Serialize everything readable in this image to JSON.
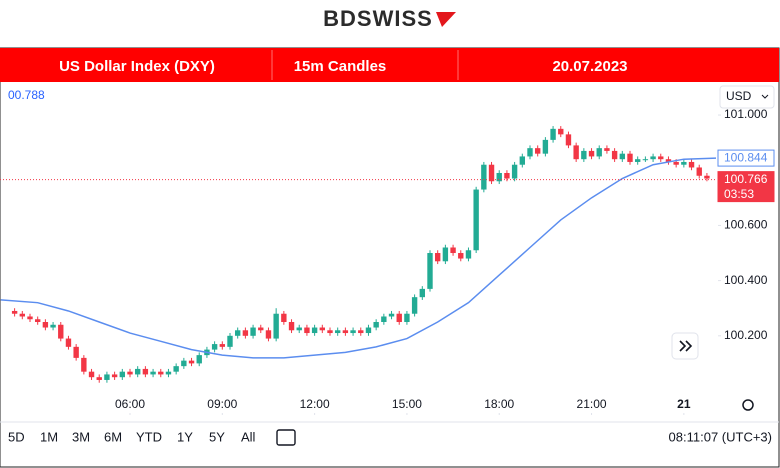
{
  "header": {
    "logo": "BDSWISS",
    "instrument": "US Dollar Index (DXY)",
    "timeframe": "15m Candles",
    "date": "20.07.2023"
  },
  "toolbar": {
    "currency": "USD",
    "ranges": [
      "5D",
      "1M",
      "3M",
      "6M",
      "YTD",
      "1Y",
      "5Y",
      "All"
    ],
    "clock": "08:11:07 (UTC+3)"
  },
  "chart_data": {
    "type": "candlestick",
    "legend_value": "00.788",
    "up_color": "#22ab94",
    "down_color": "#f23645",
    "xlim": [
      1.775,
      25.11
    ],
    "ylim": [
      99.913,
      101.098
    ],
    "xticks": [
      {
        "value": 6,
        "label": "06:00"
      },
      {
        "value": 9,
        "label": "09:00"
      },
      {
        "value": 12,
        "label": "12:00"
      },
      {
        "value": 15,
        "label": "15:00"
      },
      {
        "value": 18,
        "label": "18:00"
      },
      {
        "value": 21,
        "label": "21:00"
      },
      {
        "value": 24,
        "label": "21"
      }
    ],
    "yticks": [
      {
        "value": 100.2,
        "label": "100.200"
      },
      {
        "value": 100.4,
        "label": "100.400"
      },
      {
        "value": 100.6,
        "label": "100.600"
      },
      {
        "value": 101,
        "label": "101.000"
      }
    ],
    "x": [
      2.25,
      2.5,
      2.75,
      3,
      3.25,
      3.5,
      3.75,
      4,
      4.25,
      4.5,
      4.75,
      5,
      5.25,
      5.5,
      5.75,
      6,
      6.25,
      6.5,
      6.75,
      7,
      7.25,
      7.5,
      7.75,
      8,
      8.25,
      8.5,
      8.75,
      9,
      9.25,
      9.5,
      9.75,
      10,
      10.25,
      10.5,
      10.75,
      11,
      11.25,
      11.5,
      11.75,
      12,
      12.25,
      12.5,
      12.75,
      13,
      13.25,
      13.5,
      13.75,
      14,
      14.25,
      14.5,
      14.75,
      15,
      15.25,
      15.5,
      15.75,
      16,
      16.25,
      16.5,
      16.75,
      17,
      17.25,
      17.5,
      17.75,
      18,
      18.25,
      18.5,
      18.75,
      19,
      19.25,
      19.5,
      19.75,
      20,
      20.25,
      20.5,
      20.75,
      21,
      21.25,
      21.5,
      21.75,
      22,
      22.25,
      22.5,
      22.75,
      23,
      23.25,
      23.5,
      23.75,
      24,
      24.25,
      24.5,
      24.75
    ],
    "open": [
      100.29,
      100.28,
      100.27,
      100.26,
      100.25,
      100.23,
      100.24,
      100.19,
      100.16,
      100.12,
      100.07,
      100.05,
      100.04,
      100.06,
      100.05,
      100.07,
      100.06,
      100.08,
      100.06,
      100.07,
      100.06,
      100.07,
      100.09,
      100.11,
      100.1,
      100.13,
      100.15,
      100.17,
      100.16,
      100.2,
      100.22,
      100.2,
      100.23,
      100.22,
      100.19,
      100.28,
      100.25,
      100.22,
      100.23,
      100.21,
      100.23,
      100.22,
      100.21,
      100.22,
      100.21,
      100.22,
      100.21,
      100.23,
      100.25,
      100.27,
      100.28,
      100.25,
      100.28,
      100.34,
      100.37,
      100.5,
      100.47,
      100.52,
      100.5,
      100.48,
      100.51,
      100.73,
      100.82,
      100.76,
      100.79,
      100.77,
      100.82,
      100.85,
      100.88,
      100.86,
      100.91,
      100.95,
      100.93,
      100.89,
      100.84,
      100.87,
      100.85,
      100.88,
      100.87,
      100.84,
      100.86,
      100.83,
      100.84,
      100.84,
      100.85,
      100.84,
      100.83,
      100.82,
      100.83,
      100.81,
      100.78
    ],
    "high": [
      100.3,
      100.29,
      100.28,
      100.27,
      100.26,
      100.25,
      100.25,
      100.2,
      100.17,
      100.13,
      100.08,
      100.06,
      100.07,
      100.07,
      100.08,
      100.08,
      100.09,
      100.09,
      100.08,
      100.08,
      100.08,
      100.1,
      100.12,
      100.12,
      100.14,
      100.16,
      100.18,
      100.18,
      100.21,
      100.23,
      100.23,
      100.24,
      100.24,
      100.23,
      100.3,
      100.29,
      100.26,
      100.24,
      100.24,
      100.24,
      100.24,
      100.23,
      100.23,
      100.23,
      100.23,
      100.23,
      100.24,
      100.26,
      100.28,
      100.29,
      100.29,
      100.29,
      100.35,
      100.38,
      100.51,
      100.51,
      100.53,
      100.53,
      100.51,
      100.52,
      100.74,
      100.83,
      100.83,
      100.8,
      100.8,
      100.83,
      100.86,
      100.89,
      100.89,
      100.92,
      100.96,
      100.96,
      100.94,
      100.9,
      100.88,
      100.88,
      100.89,
      100.89,
      100.88,
      100.87,
      100.87,
      100.85,
      100.85,
      100.86,
      100.86,
      100.85,
      100.84,
      100.84,
      100.84,
      100.82,
      100.79
    ],
    "low": [
      100.27,
      100.26,
      100.25,
      100.24,
      100.22,
      100.22,
      100.18,
      100.15,
      100.11,
      100.06,
      100.04,
      100.03,
      100.03,
      100.04,
      100.04,
      100.05,
      100.05,
      100.05,
      100.05,
      100.05,
      100.05,
      100.06,
      100.08,
      100.09,
      100.09,
      100.12,
      100.14,
      100.15,
      100.15,
      100.19,
      100.19,
      100.19,
      100.21,
      100.18,
      100.18,
      100.24,
      100.21,
      100.21,
      100.2,
      100.2,
      100.21,
      100.2,
      100.2,
      100.2,
      100.2,
      100.2,
      100.2,
      100.22,
      100.24,
      100.26,
      100.24,
      100.24,
      100.27,
      100.33,
      100.36,
      100.46,
      100.46,
      100.49,
      100.47,
      100.47,
      100.5,
      100.72,
      100.75,
      100.75,
      100.76,
      100.76,
      100.81,
      100.84,
      100.85,
      100.85,
      100.9,
      100.92,
      100.88,
      100.83,
      100.83,
      100.84,
      100.84,
      100.86,
      100.83,
      100.83,
      100.82,
      100.82,
      100.83,
      100.83,
      100.83,
      100.82,
      100.81,
      100.81,
      100.8,
      100.77,
      100.76
    ],
    "close": [
      100.28,
      100.27,
      100.26,
      100.25,
      100.23,
      100.24,
      100.19,
      100.16,
      100.12,
      100.07,
      100.05,
      100.04,
      100.06,
      100.05,
      100.07,
      100.06,
      100.08,
      100.06,
      100.07,
      100.06,
      100.07,
      100.09,
      100.11,
      100.1,
      100.13,
      100.15,
      100.17,
      100.16,
      100.2,
      100.22,
      100.2,
      100.23,
      100.22,
      100.19,
      100.28,
      100.25,
      100.22,
      100.23,
      100.21,
      100.23,
      100.22,
      100.21,
      100.22,
      100.21,
      100.22,
      100.21,
      100.23,
      100.25,
      100.27,
      100.28,
      100.25,
      100.28,
      100.34,
      100.37,
      100.5,
      100.47,
      100.52,
      100.5,
      100.48,
      100.51,
      100.73,
      100.82,
      100.76,
      100.79,
      100.77,
      100.82,
      100.85,
      100.88,
      100.86,
      100.91,
      100.95,
      100.93,
      100.89,
      100.84,
      100.87,
      100.85,
      100.88,
      100.87,
      100.84,
      100.86,
      100.83,
      100.84,
      100.84,
      100.85,
      100.84,
      100.83,
      100.82,
      100.83,
      100.81,
      100.78,
      100.77
    ],
    "ma": {
      "color": "#5b8def",
      "x": [
        1.8,
        3,
        4,
        5,
        6,
        7,
        8,
        9,
        10,
        11,
        12,
        13,
        14,
        15,
        16,
        17,
        18,
        19,
        20,
        21,
        22,
        23,
        24,
        25.1
      ],
      "values": [
        100.33,
        100.32,
        100.29,
        100.25,
        100.21,
        100.18,
        100.15,
        100.13,
        100.12,
        100.12,
        100.13,
        100.14,
        100.16,
        100.19,
        100.25,
        100.32,
        100.42,
        100.52,
        100.62,
        100.7,
        100.77,
        100.82,
        100.84,
        100.844
      ]
    },
    "ma_last": 100.844,
    "prev_price": 100.774,
    "last_price": 100.766,
    "countdown": "03:53"
  }
}
